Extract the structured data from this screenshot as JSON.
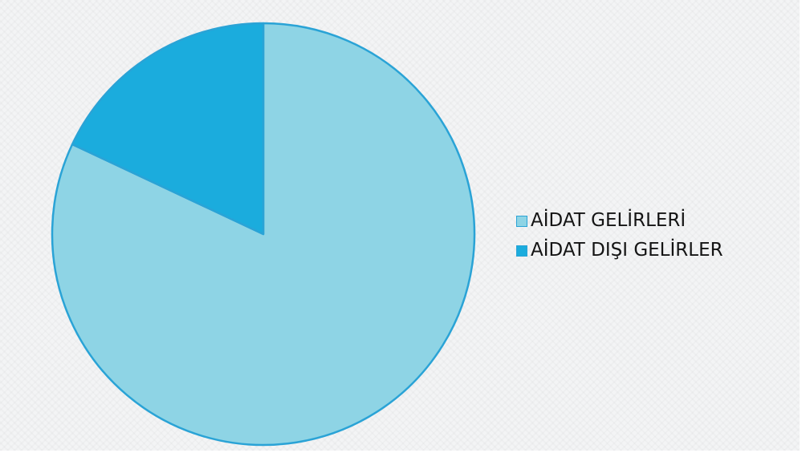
{
  "chart_data": {
    "type": "pie",
    "categories": [
      "AİDAT GELİRLERİ",
      "AİDAT DIŞI GELİRLER"
    ],
    "values": [
      82,
      18
    ],
    "colors": [
      "#8ed4e5",
      "#1bacdd"
    ],
    "border_color": "#2aa3d6",
    "title": "",
    "legend_position": "right"
  }
}
